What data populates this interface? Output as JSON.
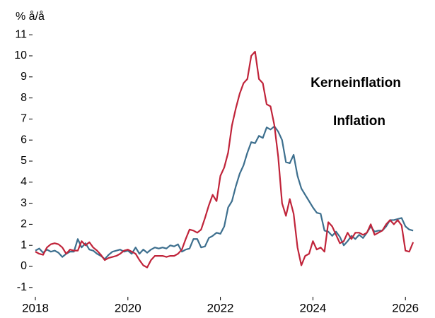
{
  "chart_data": {
    "type": "line",
    "ylabel": "% å/å",
    "xlim": [
      2018,
      2026.3
    ],
    "ylim": [
      -1.5,
      11.5
    ],
    "xticks": [
      2018,
      2020,
      2022,
      2024,
      2026
    ],
    "yticks": [
      -1,
      0,
      1,
      2,
      3,
      4,
      5,
      6,
      7,
      8,
      9,
      10,
      11
    ],
    "x": [
      2018,
      2018.083,
      2018.167,
      2018.25,
      2018.333,
      2018.417,
      2018.5,
      2018.583,
      2018.667,
      2018.75,
      2018.833,
      2018.917,
      2019,
      2019.083,
      2019.167,
      2019.25,
      2019.333,
      2019.417,
      2019.5,
      2019.583,
      2019.667,
      2019.75,
      2019.833,
      2019.917,
      2020,
      2020.083,
      2020.167,
      2020.25,
      2020.333,
      2020.417,
      2020.5,
      2020.583,
      2020.667,
      2020.75,
      2020.833,
      2020.917,
      2021,
      2021.083,
      2021.167,
      2021.25,
      2021.333,
      2021.417,
      2021.5,
      2021.583,
      2021.667,
      2021.75,
      2021.833,
      2021.917,
      2022,
      2022.083,
      2022.167,
      2022.25,
      2022.333,
      2022.417,
      2022.5,
      2022.583,
      2022.667,
      2022.75,
      2022.833,
      2022.917,
      2023,
      2023.083,
      2023.167,
      2023.25,
      2023.333,
      2023.417,
      2023.5,
      2023.583,
      2023.667,
      2023.75,
      2023.833,
      2023.917,
      2024,
      2024.083,
      2024.167,
      2024.25,
      2024.333,
      2024.417,
      2024.5,
      2024.583,
      2024.667,
      2024.75,
      2024.833,
      2024.917,
      2025,
      2025.083,
      2025.167,
      2025.25,
      2025.333,
      2025.417,
      2025.5,
      2025.583,
      2025.667,
      2025.75,
      2025.833,
      2025.917,
      2026,
      2026.083,
      2026.167
    ],
    "series": [
      {
        "name": "Inflation",
        "color": "#c0243a",
        "values": [
          0.7,
          0.6,
          0.55,
          0.9,
          1.05,
          1.1,
          1.05,
          0.9,
          0.6,
          0.8,
          0.75,
          0.75,
          1.2,
          1.0,
          1.15,
          0.9,
          0.75,
          0.55,
          0.3,
          0.4,
          0.45,
          0.5,
          0.6,
          0.75,
          0.8,
          0.7,
          0.6,
          0.3,
          0.05,
          -0.05,
          0.3,
          0.5,
          0.5,
          0.5,
          0.45,
          0.5,
          0.5,
          0.6,
          0.8,
          1.3,
          1.75,
          1.7,
          1.6,
          1.75,
          2.3,
          2.9,
          3.4,
          3.1,
          4.3,
          4.7,
          5.4,
          6.7,
          7.5,
          8.2,
          8.7,
          8.9,
          10.0,
          10.2,
          8.9,
          8.7,
          7.7,
          7.6,
          6.7,
          5.2,
          3.0,
          2.4,
          3.2,
          2.5,
          0.9,
          0.05,
          0.5,
          0.6,
          1.2,
          0.8,
          0.9,
          0.7,
          2.1,
          1.9,
          1.5,
          1.1,
          1.2,
          1.6,
          1.3,
          1.6,
          1.6,
          1.5,
          1.6,
          2.0,
          1.5,
          1.6,
          1.7,
          2.0,
          2.2,
          2.0,
          2.2,
          1.95,
          0.75,
          0.7,
          1.15
        ]
      },
      {
        "name": "Kerneinflation",
        "color": "#3d6f8e",
        "values": [
          0.75,
          0.85,
          0.65,
          0.8,
          0.7,
          0.75,
          0.65,
          0.45,
          0.6,
          0.7,
          0.7,
          1.3,
          0.9,
          1.1,
          0.8,
          0.75,
          0.6,
          0.5,
          0.35,
          0.55,
          0.7,
          0.75,
          0.8,
          0.7,
          0.75,
          0.6,
          0.9,
          0.6,
          0.8,
          0.65,
          0.8,
          0.9,
          0.85,
          0.9,
          0.85,
          1.0,
          0.95,
          1.05,
          0.7,
          0.8,
          0.85,
          1.3,
          1.3,
          0.9,
          0.95,
          1.35,
          1.45,
          1.6,
          1.55,
          1.9,
          2.8,
          3.1,
          3.8,
          4.4,
          4.8,
          5.4,
          5.9,
          5.85,
          6.2,
          6.1,
          6.6,
          6.5,
          6.65,
          6.4,
          6.0,
          4.95,
          4.9,
          5.3,
          4.3,
          3.7,
          3.4,
          3.1,
          2.8,
          2.55,
          2.5,
          1.7,
          1.65,
          1.45,
          1.65,
          1.4,
          1.0,
          1.2,
          1.45,
          1.3,
          1.5,
          1.35,
          1.6,
          1.9,
          1.65,
          1.7,
          1.7,
          1.9,
          2.2,
          2.2,
          2.25,
          2.3,
          1.9,
          1.75,
          1.7
        ]
      }
    ]
  }
}
